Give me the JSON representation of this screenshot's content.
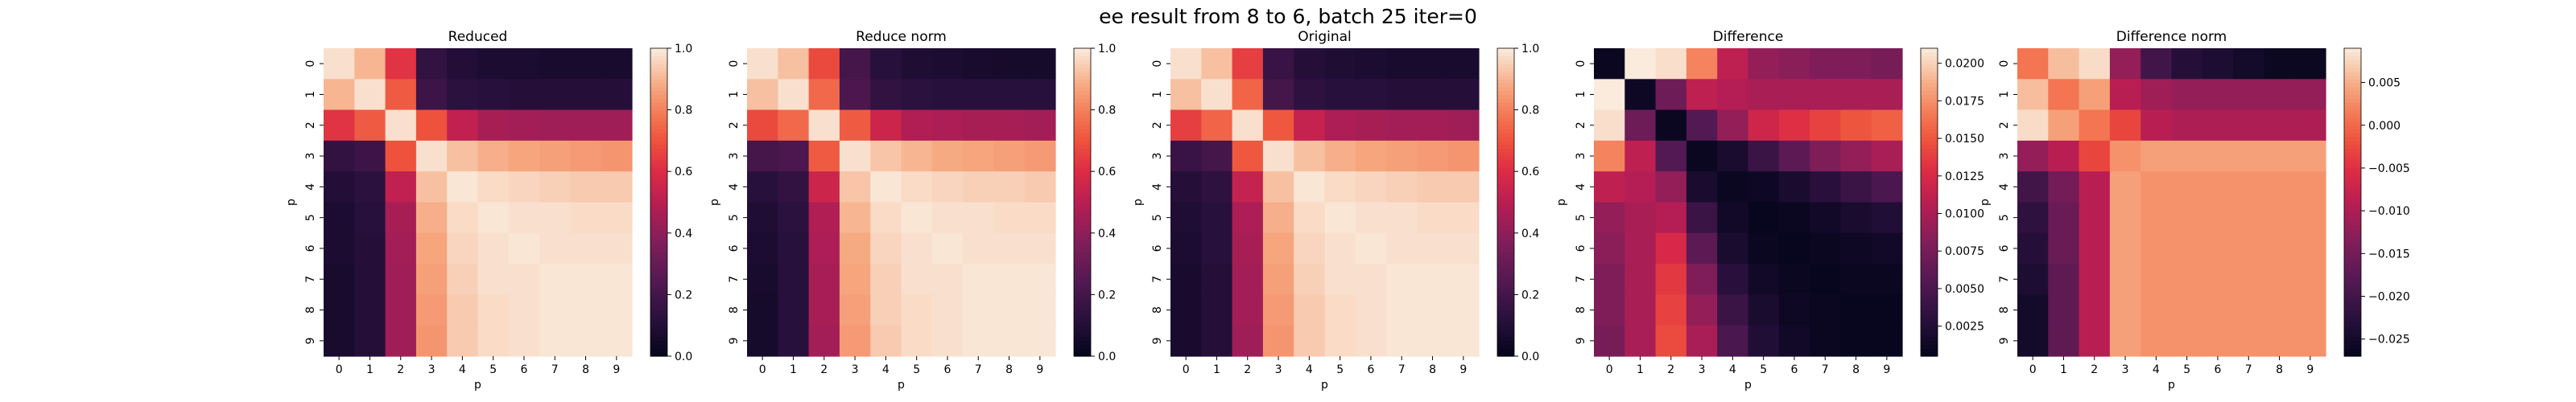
{
  "figure": {
    "suptitle": "ee result from 8 to 6, batch 25 iter=0"
  },
  "chart_data": [
    {
      "type": "heatmap",
      "title": "Reduced",
      "xlabel": "p",
      "ylabel": "p",
      "x_ticks": [
        "0",
        "1",
        "2",
        "3",
        "4",
        "5",
        "6",
        "7",
        "8",
        "9"
      ],
      "y_ticks": [
        "0",
        "1",
        "2",
        "3",
        "4",
        "5",
        "6",
        "7",
        "8",
        "9"
      ],
      "colormap": "rocket",
      "vmin": 0.0,
      "vmax": 1.0,
      "colorbar_ticks": [
        "0.0",
        "0.2",
        "0.4",
        "0.6",
        "0.8",
        "1.0"
      ],
      "values": [
        [
          0.98,
          0.9,
          0.62,
          0.15,
          0.1,
          0.08,
          0.08,
          0.07,
          0.07,
          0.07
        ],
        [
          0.9,
          0.98,
          0.72,
          0.18,
          0.13,
          0.12,
          0.11,
          0.11,
          0.11,
          0.11
        ],
        [
          0.62,
          0.72,
          0.98,
          0.7,
          0.52,
          0.46,
          0.45,
          0.44,
          0.44,
          0.44
        ],
        [
          0.15,
          0.18,
          0.7,
          0.98,
          0.92,
          0.89,
          0.87,
          0.86,
          0.85,
          0.84
        ],
        [
          0.1,
          0.13,
          0.52,
          0.92,
          0.99,
          0.97,
          0.96,
          0.95,
          0.94,
          0.94
        ],
        [
          0.08,
          0.12,
          0.46,
          0.89,
          0.97,
          0.99,
          0.98,
          0.98,
          0.97,
          0.97
        ],
        [
          0.08,
          0.11,
          0.45,
          0.87,
          0.96,
          0.98,
          0.99,
          0.98,
          0.98,
          0.98
        ],
        [
          0.07,
          0.11,
          0.44,
          0.86,
          0.95,
          0.98,
          0.98,
          0.99,
          0.99,
          0.99
        ],
        [
          0.07,
          0.11,
          0.44,
          0.85,
          0.94,
          0.97,
          0.98,
          0.99,
          0.99,
          0.99
        ],
        [
          0.07,
          0.11,
          0.44,
          0.84,
          0.94,
          0.97,
          0.98,
          0.99,
          0.99,
          0.99
        ]
      ]
    },
    {
      "type": "heatmap",
      "title": "Reduce norm",
      "xlabel": "p",
      "ylabel": "p",
      "x_ticks": [
        "0",
        "1",
        "2",
        "3",
        "4",
        "5",
        "6",
        "7",
        "8",
        "9"
      ],
      "y_ticks": [
        "0",
        "1",
        "2",
        "3",
        "4",
        "5",
        "6",
        "7",
        "8",
        "9"
      ],
      "colormap": "rocket",
      "vmin": 0.0,
      "vmax": 1.0,
      "colorbar_ticks": [
        "0.0",
        "0.2",
        "0.4",
        "0.6",
        "0.8",
        "1.0"
      ],
      "values": [
        [
          0.98,
          0.92,
          0.68,
          0.2,
          0.12,
          0.09,
          0.08,
          0.07,
          0.06,
          0.06
        ],
        [
          0.92,
          0.98,
          0.75,
          0.22,
          0.15,
          0.13,
          0.12,
          0.12,
          0.12,
          0.12
        ],
        [
          0.68,
          0.75,
          0.98,
          0.72,
          0.55,
          0.48,
          0.47,
          0.46,
          0.46,
          0.45
        ],
        [
          0.2,
          0.22,
          0.72,
          0.98,
          0.93,
          0.9,
          0.88,
          0.87,
          0.86,
          0.85
        ],
        [
          0.12,
          0.15,
          0.55,
          0.93,
          0.99,
          0.97,
          0.96,
          0.95,
          0.95,
          0.94
        ],
        [
          0.09,
          0.13,
          0.48,
          0.9,
          0.97,
          0.99,
          0.98,
          0.98,
          0.97,
          0.97
        ],
        [
          0.08,
          0.12,
          0.47,
          0.88,
          0.96,
          0.98,
          0.99,
          0.98,
          0.98,
          0.98
        ],
        [
          0.07,
          0.12,
          0.46,
          0.87,
          0.95,
          0.98,
          0.98,
          0.99,
          0.99,
          0.99
        ],
        [
          0.06,
          0.12,
          0.46,
          0.86,
          0.95,
          0.97,
          0.98,
          0.99,
          0.99,
          0.99
        ],
        [
          0.06,
          0.12,
          0.45,
          0.85,
          0.94,
          0.97,
          0.98,
          0.99,
          0.99,
          0.99
        ]
      ]
    },
    {
      "type": "heatmap",
      "title": "Original",
      "xlabel": "p",
      "ylabel": "p",
      "x_ticks": [
        "0",
        "1",
        "2",
        "3",
        "4",
        "5",
        "6",
        "7",
        "8",
        "9"
      ],
      "y_ticks": [
        "0",
        "1",
        "2",
        "3",
        "4",
        "5",
        "6",
        "7",
        "8",
        "9"
      ],
      "colormap": "rocket",
      "vmin": 0.0,
      "vmax": 1.0,
      "colorbar_ticks": [
        "0.0",
        "0.2",
        "0.4",
        "0.6",
        "0.8",
        "1.0"
      ],
      "values": [
        [
          0.98,
          0.92,
          0.65,
          0.17,
          0.11,
          0.09,
          0.08,
          0.07,
          0.07,
          0.07
        ],
        [
          0.92,
          0.98,
          0.74,
          0.2,
          0.14,
          0.12,
          0.12,
          0.11,
          0.11,
          0.11
        ],
        [
          0.65,
          0.74,
          0.98,
          0.71,
          0.53,
          0.47,
          0.46,
          0.45,
          0.45,
          0.44
        ],
        [
          0.17,
          0.2,
          0.71,
          0.98,
          0.92,
          0.89,
          0.87,
          0.86,
          0.85,
          0.84
        ],
        [
          0.11,
          0.14,
          0.53,
          0.92,
          0.99,
          0.97,
          0.96,
          0.95,
          0.94,
          0.94
        ],
        [
          0.09,
          0.12,
          0.47,
          0.89,
          0.97,
          0.99,
          0.98,
          0.98,
          0.97,
          0.97
        ],
        [
          0.08,
          0.12,
          0.46,
          0.87,
          0.96,
          0.98,
          0.99,
          0.98,
          0.98,
          0.98
        ],
        [
          0.07,
          0.11,
          0.45,
          0.86,
          0.95,
          0.98,
          0.98,
          0.99,
          0.99,
          0.99
        ],
        [
          0.07,
          0.11,
          0.45,
          0.85,
          0.94,
          0.97,
          0.98,
          0.99,
          0.99,
          0.99
        ],
        [
          0.07,
          0.11,
          0.44,
          0.84,
          0.94,
          0.97,
          0.98,
          0.99,
          0.99,
          0.99
        ]
      ]
    },
    {
      "type": "heatmap",
      "title": "Difference",
      "xlabel": "p",
      "ylabel": "p",
      "x_ticks": [
        "0",
        "1",
        "2",
        "3",
        "4",
        "5",
        "6",
        "7",
        "8",
        "9"
      ],
      "y_ticks": [
        "0",
        "1",
        "2",
        "3",
        "4",
        "5",
        "6",
        "7",
        "8",
        "9"
      ],
      "colormap": "rocket",
      "vmin": 0.0005,
      "vmax": 0.021,
      "colorbar_ticks": [
        "0.0025",
        "0.0050",
        "0.0075",
        "0.0100",
        "0.0125",
        "0.0150",
        "0.0175",
        "0.0200"
      ],
      "values": [
        [
          0.001,
          0.021,
          0.0205,
          0.017,
          0.011,
          0.009,
          0.0085,
          0.008,
          0.008,
          0.0075
        ],
        [
          0.021,
          0.0012,
          0.007,
          0.011,
          0.0105,
          0.01,
          0.01,
          0.01,
          0.01,
          0.01
        ],
        [
          0.0205,
          0.007,
          0.001,
          0.0055,
          0.009,
          0.012,
          0.013,
          0.014,
          0.015,
          0.0155
        ],
        [
          0.017,
          0.011,
          0.0055,
          0.001,
          0.002,
          0.004,
          0.006,
          0.008,
          0.009,
          0.01
        ],
        [
          0.011,
          0.0105,
          0.009,
          0.002,
          0.001,
          0.0012,
          0.002,
          0.003,
          0.004,
          0.005
        ],
        [
          0.009,
          0.01,
          0.0105,
          0.004,
          0.0015,
          0.0008,
          0.001,
          0.0015,
          0.002,
          0.0025
        ],
        [
          0.0085,
          0.01,
          0.0125,
          0.006,
          0.002,
          0.001,
          0.0008,
          0.001,
          0.0012,
          0.0015
        ],
        [
          0.008,
          0.01,
          0.0135,
          0.008,
          0.003,
          0.0015,
          0.001,
          0.0008,
          0.001,
          0.001
        ],
        [
          0.008,
          0.01,
          0.014,
          0.009,
          0.004,
          0.002,
          0.0012,
          0.001,
          0.0008,
          0.0008
        ],
        [
          0.0075,
          0.01,
          0.0145,
          0.01,
          0.005,
          0.0025,
          0.0015,
          0.001,
          0.0008,
          0.0008
        ]
      ]
    },
    {
      "type": "heatmap",
      "title": "Difference norm",
      "xlabel": "p",
      "ylabel": "p",
      "x_ticks": [
        "0",
        "1",
        "2",
        "3",
        "4",
        "5",
        "6",
        "7",
        "8",
        "9"
      ],
      "y_ticks": [
        "0",
        "1",
        "2",
        "3",
        "4",
        "5",
        "6",
        "7",
        "8",
        "9"
      ],
      "colormap": "rocket",
      "vmin": -0.027,
      "vmax": 0.009,
      "colorbar_ticks": [
        "−0.025",
        "−0.020",
        "−0.015",
        "−0.010",
        "−0.005",
        "0.000",
        "0.005"
      ],
      "values": [
        [
          0.001,
          0.006,
          0.008,
          -0.012,
          -0.02,
          -0.023,
          -0.024,
          -0.025,
          -0.026,
          -0.026
        ],
        [
          0.006,
          0.001,
          0.004,
          -0.009,
          -0.011,
          -0.012,
          -0.012,
          -0.012,
          -0.012,
          -0.012
        ],
        [
          0.008,
          0.004,
          0.001,
          -0.003,
          -0.009,
          -0.01,
          -0.01,
          -0.01,
          -0.01,
          -0.01
        ],
        [
          -0.012,
          -0.009,
          -0.003,
          0.003,
          0.004,
          0.004,
          0.004,
          0.004,
          0.004,
          0.004
        ],
        [
          -0.02,
          -0.015,
          -0.009,
          0.004,
          0.003,
          0.003,
          0.003,
          0.003,
          0.003,
          0.003
        ],
        [
          -0.022,
          -0.016,
          -0.009,
          0.004,
          0.003,
          0.003,
          0.003,
          0.003,
          0.003,
          0.003
        ],
        [
          -0.023,
          -0.016,
          -0.009,
          0.004,
          0.003,
          0.003,
          0.003,
          0.003,
          0.003,
          0.003
        ],
        [
          -0.024,
          -0.017,
          -0.009,
          0.004,
          0.003,
          0.003,
          0.003,
          0.003,
          0.003,
          0.003
        ],
        [
          -0.025,
          -0.017,
          -0.009,
          0.004,
          0.003,
          0.003,
          0.003,
          0.003,
          0.003,
          0.003
        ],
        [
          -0.025,
          -0.017,
          -0.009,
          0.004,
          0.003,
          0.003,
          0.003,
          0.003,
          0.003,
          0.003
        ]
      ]
    }
  ]
}
